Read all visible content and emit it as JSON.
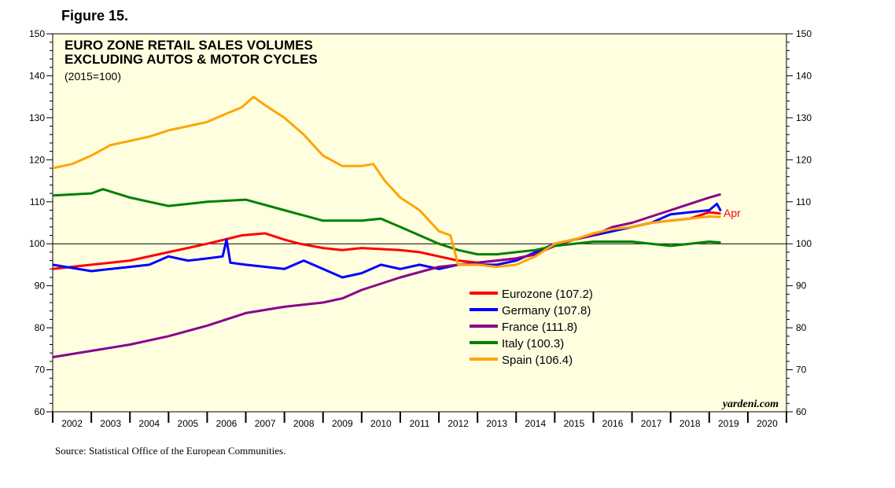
{
  "figure_label": "Figure 15.",
  "source": "Source: Statistical Office of the European Communities.",
  "credit": "yardeni.com",
  "colors": {
    "background": "#ffffe0",
    "Eurozone": "#ff0000",
    "Germany": "#0000ff",
    "France": "#8b008b",
    "Italy": "#008000",
    "Spain": "#ffa500"
  },
  "chart_data": {
    "type": "line",
    "title": "EURO ZONE RETAIL SALES VOLUMES",
    "subtitle": "EXCLUDING AUTOS & MOTOR CYCLES",
    "note": "(2015=100)",
    "x_tick_labels": [
      "2002",
      "2003",
      "2004",
      "2005",
      "2006",
      "2007",
      "2008",
      "2009",
      "2010",
      "2011",
      "2012",
      "2013",
      "2014",
      "2015",
      "2016",
      "2017",
      "2018",
      "2019",
      "2020"
    ],
    "xlim": [
      2002.0,
      2021.0
    ],
    "ylim": [
      60,
      150
    ],
    "y_ticks": [
      60,
      70,
      80,
      90,
      100,
      110,
      120,
      130,
      140,
      150
    ],
    "reference_line": 100,
    "end_annotation": "Apr",
    "legend_position": "center-right",
    "legend": [
      {
        "name": "Eurozone",
        "label": "Eurozone (107.2)"
      },
      {
        "name": "Germany",
        "label": "Germany (107.8)"
      },
      {
        "name": "France",
        "label": "France (111.8)"
      },
      {
        "name": "Italy",
        "label": "Italy (100.3)"
      },
      {
        "name": "Spain",
        "label": "Spain (106.4)"
      }
    ],
    "series": [
      {
        "name": "Eurozone",
        "x": [
          2002.0,
          2003.0,
          2004.0,
          2005.0,
          2006.0,
          2006.9,
          2007.5,
          2008.0,
          2008.4,
          2009.0,
          2009.5,
          2010.0,
          2011.0,
          2011.5,
          2012.0,
          2012.5,
          2013.0,
          2013.5,
          2014.0,
          2014.5,
          2015.0,
          2015.5,
          2016.0,
          2016.5,
          2017.0,
          2017.5,
          2018.0,
          2018.5,
          2019.0,
          2019.3
        ],
        "y": [
          94,
          95,
          96,
          98,
          100,
          102,
          102.5,
          101,
          100,
          99,
          98.5,
          99,
          98.5,
          98,
          97,
          96,
          95.5,
          96,
          96.5,
          97.5,
          100,
          101,
          102,
          103,
          104,
          105,
          105.5,
          106,
          107.5,
          107.2
        ]
      },
      {
        "name": "Germany",
        "x": [
          2002.0,
          2003.0,
          2004.0,
          2004.5,
          2005.0,
          2005.5,
          2006.0,
          2006.4,
          2006.5,
          2006.6,
          2007.0,
          2008.0,
          2008.5,
          2009.0,
          2009.5,
          2010.0,
          2010.5,
          2011.0,
          2011.5,
          2012.0,
          2012.5,
          2013.0,
          2013.5,
          2014.0,
          2014.5,
          2015.0,
          2015.5,
          2016.0,
          2016.5,
          2017.0,
          2017.5,
          2018.0,
          2018.5,
          2019.0,
          2019.2,
          2019.3
        ],
        "y": [
          95,
          93.5,
          94.5,
          95,
          97,
          96,
          96.5,
          97,
          101,
          95.5,
          95,
          94,
          96,
          94,
          92,
          93,
          95,
          94,
          95,
          94,
          95,
          95,
          95,
          96,
          98,
          100,
          101,
          102,
          103,
          104,
          105,
          107,
          107.5,
          108,
          109.5,
          107.8
        ]
      },
      {
        "name": "France",
        "x": [
          2002.0,
          2003.0,
          2004.0,
          2005.0,
          2006.0,
          2007.0,
          2008.0,
          2009.0,
          2009.5,
          2010.0,
          2010.5,
          2011.0,
          2012.0,
          2013.0,
          2014.0,
          2014.5,
          2015.0,
          2015.5,
          2016.0,
          2016.5,
          2017.0,
          2017.5,
          2018.0,
          2018.5,
          2019.0,
          2019.3
        ],
        "y": [
          73,
          74.5,
          76,
          78,
          80.5,
          83.5,
          85,
          86,
          87,
          89,
          90.5,
          92,
          94.5,
          95.5,
          96.5,
          97.5,
          99.5,
          101,
          102,
          104,
          105,
          106.5,
          108,
          109.5,
          111,
          111.8
        ]
      },
      {
        "name": "Italy",
        "x": [
          2002.0,
          2003.0,
          2003.3,
          2004.0,
          2004.5,
          2005.0,
          2006.0,
          2007.0,
          2008.0,
          2009.0,
          2010.0,
          2010.5,
          2011.0,
          2011.5,
          2012.0,
          2012.5,
          2013.0,
          2013.5,
          2014.0,
          2014.5,
          2015.0,
          2015.5,
          2016.0,
          2016.5,
          2017.0,
          2017.5,
          2018.0,
          2018.5,
          2019.0,
          2019.3
        ],
        "y": [
          111.5,
          112,
          113,
          111,
          110,
          109,
          110,
          110.5,
          108,
          105.5,
          105.5,
          106,
          104,
          102,
          100,
          98.5,
          97.5,
          97.5,
          98,
          98.5,
          99.5,
          100,
          100.5,
          100.5,
          100.5,
          100,
          99.5,
          100,
          100.5,
          100.3
        ]
      },
      {
        "name": "Spain",
        "x": [
          2002.0,
          2002.5,
          2003.0,
          2003.5,
          2004.0,
          2004.5,
          2005.0,
          2005.5,
          2006.0,
          2006.5,
          2006.9,
          2007.2,
          2007.5,
          2008.0,
          2008.5,
          2009.0,
          2009.5,
          2010.0,
          2010.3,
          2010.6,
          2011.0,
          2011.5,
          2012.0,
          2012.3,
          2012.5,
          2013.0,
          2013.5,
          2014.0,
          2014.5,
          2015.0,
          2015.5,
          2016.0,
          2016.5,
          2017.0,
          2017.5,
          2018.0,
          2018.5,
          2019.0,
          2019.3
        ],
        "y": [
          118,
          119,
          121,
          123.5,
          124.5,
          125.5,
          127,
          128,
          129,
          131,
          132.5,
          135,
          133,
          130,
          126,
          121,
          118.5,
          118.5,
          119,
          115,
          111,
          108,
          103,
          102,
          95,
          95,
          94.5,
          95,
          97,
          100,
          101,
          102.5,
          103.5,
          104,
          105,
          105.5,
          106,
          106.5,
          106.4
        ]
      }
    ]
  }
}
